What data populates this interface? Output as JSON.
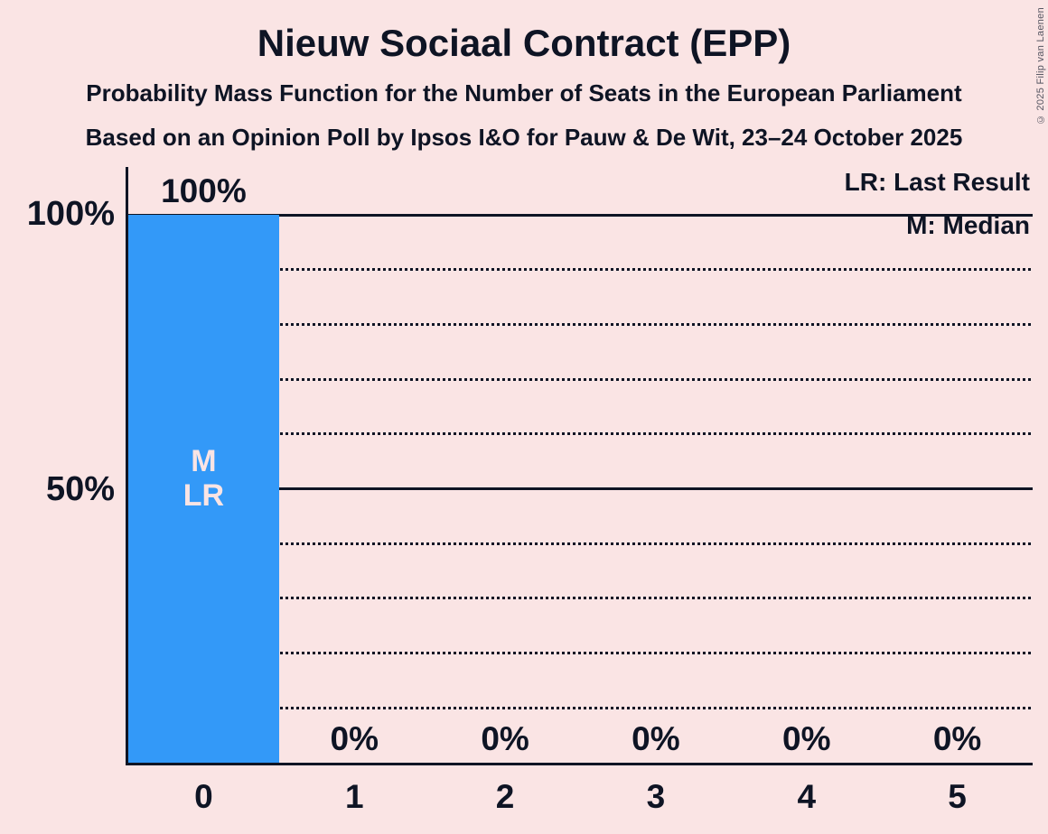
{
  "header": {
    "title": "Nieuw Sociaal Contract (EPP)",
    "subtitle_line1": "Probability Mass Function for the Number of Seats in the European Parliament",
    "subtitle_line2": "Based on an Opinion Poll by Ipsos I&O for Pauw & De Wit, 23–24 October 2025"
  },
  "copyright": "© 2025 Filip van Laenen",
  "legend": {
    "last_result": "LR: Last Result",
    "median": "M: Median"
  },
  "y_axis_labels": [
    {
      "pct": 100,
      "text": "100%"
    },
    {
      "pct": 50,
      "text": "50%"
    }
  ],
  "chart_data": {
    "type": "bar",
    "title": "Nieuw Sociaal Contract (EPP)",
    "subtitle1": "Probability Mass Function for the Number of Seats in the European Parliament",
    "subtitle2": "Based on an Opinion Poll by Ipsos I&O for Pauw & De Wit, 23–24 October 2025",
    "categories": [
      "0",
      "1",
      "2",
      "3",
      "4",
      "5"
    ],
    "values": [
      100,
      0,
      0,
      0,
      0,
      0
    ],
    "value_labels": [
      "100%",
      "0%",
      "0%",
      "0%",
      "0%",
      "0%"
    ],
    "annotations": [
      {
        "bar_index": 0,
        "lines": [
          "M",
          "LR"
        ]
      }
    ],
    "legend_entries": [
      "LR: Last Result",
      "M: Median"
    ],
    "ylim": [
      0,
      100
    ],
    "y_ticks_labeled": [
      50,
      100
    ],
    "solid_gridlines_pct": [
      50,
      100
    ],
    "dotted_gridlines_pct": [
      10,
      20,
      30,
      40,
      60,
      70,
      80,
      90
    ],
    "grid": true,
    "legend_position": "top-right",
    "colors": {
      "bar": "#3399f8",
      "background": "#fae4e4",
      "text": "#0e1424",
      "annotation_text": "#fae4e4",
      "copyright_text": "#565662"
    }
  }
}
